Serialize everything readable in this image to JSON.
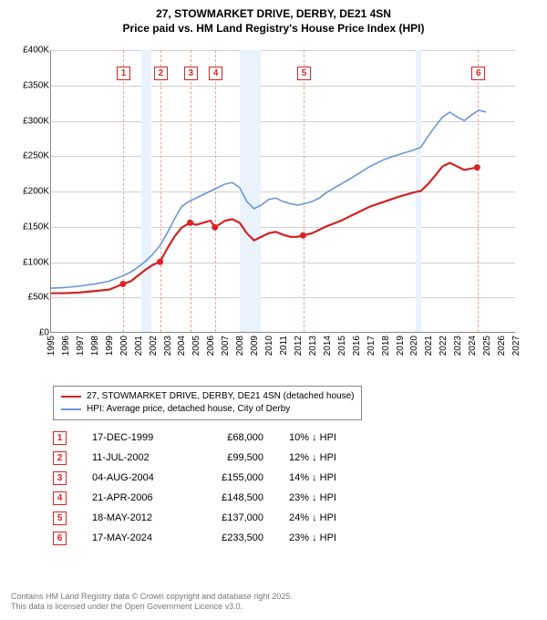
{
  "title_line1": "27, STOWMARKET DRIVE, DERBY, DE21 4SN",
  "title_line2": "Price paid vs. HM Land Registry's House Price Index (HPI)",
  "chart": {
    "type": "line",
    "x_start_year": 1995,
    "x_end_year": 2027,
    "xlabels": [
      "1995",
      "1996",
      "1997",
      "1998",
      "1999",
      "2000",
      "2001",
      "2002",
      "2003",
      "2004",
      "2005",
      "2006",
      "2007",
      "2008",
      "2009",
      "2010",
      "2011",
      "2012",
      "2013",
      "2014",
      "2015",
      "2016",
      "2017",
      "2018",
      "2019",
      "2020",
      "2021",
      "2022",
      "2023",
      "2024",
      "2025",
      "2026",
      "2027"
    ],
    "ylim_min": 0,
    "ylim_max": 400000,
    "ytick_step": 50000,
    "ylabels": [
      "£0",
      "£50K",
      "£100K",
      "£150K",
      "£200K",
      "£250K",
      "£300K",
      "£350K",
      "£400K"
    ],
    "grid_color": "#d0d0d0",
    "band_color": "#eaf2fc",
    "dash_color": "#e9a0a0",
    "bg": "#ffffff",
    "recession_bands": [
      {
        "start": 2001.2,
        "end": 2001.9
      },
      {
        "start": 2008.0,
        "end": 2009.4
      },
      {
        "start": 2020.1,
        "end": 2020.5
      }
    ],
    "series": [
      {
        "name": "price_paid",
        "label": "27, STOWMARKET DRIVE, DERBY, DE21 4SN (detached house)",
        "color": "#d22222",
        "width": 2.2,
        "points": [
          [
            1995.0,
            55000
          ],
          [
            1996.0,
            55000
          ],
          [
            1997.0,
            56000
          ],
          [
            1998.0,
            58000
          ],
          [
            1999.0,
            60000
          ],
          [
            1999.96,
            68000
          ],
          [
            2000.5,
            72000
          ],
          [
            2001.0,
            80000
          ],
          [
            2001.5,
            88000
          ],
          [
            2002.0,
            95000
          ],
          [
            2002.52,
            99500
          ],
          [
            2003.0,
            118000
          ],
          [
            2003.5,
            135000
          ],
          [
            2004.0,
            148000
          ],
          [
            2004.59,
            155000
          ],
          [
            2005.0,
            152000
          ],
          [
            2005.5,
            155000
          ],
          [
            2006.0,
            158000
          ],
          [
            2006.3,
            148500
          ],
          [
            2007.0,
            158000
          ],
          [
            2007.5,
            160000
          ],
          [
            2008.0,
            155000
          ],
          [
            2008.5,
            140000
          ],
          [
            2009.0,
            130000
          ],
          [
            2009.5,
            135000
          ],
          [
            2010.0,
            140000
          ],
          [
            2010.5,
            142000
          ],
          [
            2011.0,
            138000
          ],
          [
            2011.5,
            135000
          ],
          [
            2012.0,
            135000
          ],
          [
            2012.38,
            137000
          ],
          [
            2013.0,
            140000
          ],
          [
            2013.5,
            145000
          ],
          [
            2014.0,
            150000
          ],
          [
            2015.0,
            158000
          ],
          [
            2016.0,
            168000
          ],
          [
            2017.0,
            178000
          ],
          [
            2018.0,
            185000
          ],
          [
            2019.0,
            192000
          ],
          [
            2020.0,
            198000
          ],
          [
            2020.5,
            200000
          ],
          [
            2021.0,
            210000
          ],
          [
            2021.5,
            222000
          ],
          [
            2022.0,
            235000
          ],
          [
            2022.5,
            240000
          ],
          [
            2023.0,
            235000
          ],
          [
            2023.5,
            230000
          ],
          [
            2024.0,
            232000
          ],
          [
            2024.38,
            233500
          ]
        ]
      },
      {
        "name": "hpi",
        "label": "HPI: Average price, detached house, City of Derby",
        "color": "#6b95d4",
        "width": 1.6,
        "points": [
          [
            1995.0,
            62000
          ],
          [
            1996.0,
            63000
          ],
          [
            1997.0,
            65000
          ],
          [
            1998.0,
            68000
          ],
          [
            1999.0,
            72000
          ],
          [
            2000.0,
            80000
          ],
          [
            2000.5,
            85000
          ],
          [
            2001.0,
            92000
          ],
          [
            2001.5,
            100000
          ],
          [
            2002.0,
            110000
          ],
          [
            2002.5,
            122000
          ],
          [
            2003.0,
            140000
          ],
          [
            2003.5,
            160000
          ],
          [
            2004.0,
            178000
          ],
          [
            2004.5,
            185000
          ],
          [
            2005.0,
            190000
          ],
          [
            2005.5,
            195000
          ],
          [
            2006.0,
            200000
          ],
          [
            2006.5,
            205000
          ],
          [
            2007.0,
            210000
          ],
          [
            2007.5,
            212000
          ],
          [
            2008.0,
            205000
          ],
          [
            2008.5,
            185000
          ],
          [
            2009.0,
            175000
          ],
          [
            2009.5,
            180000
          ],
          [
            2010.0,
            188000
          ],
          [
            2010.5,
            190000
          ],
          [
            2011.0,
            185000
          ],
          [
            2011.5,
            182000
          ],
          [
            2012.0,
            180000
          ],
          [
            2012.5,
            182000
          ],
          [
            2013.0,
            185000
          ],
          [
            2013.5,
            190000
          ],
          [
            2014.0,
            198000
          ],
          [
            2015.0,
            210000
          ],
          [
            2016.0,
            222000
          ],
          [
            2017.0,
            235000
          ],
          [
            2018.0,
            245000
          ],
          [
            2019.0,
            252000
          ],
          [
            2020.0,
            258000
          ],
          [
            2020.5,
            262000
          ],
          [
            2021.0,
            278000
          ],
          [
            2021.5,
            292000
          ],
          [
            2022.0,
            305000
          ],
          [
            2022.5,
            312000
          ],
          [
            2023.0,
            305000
          ],
          [
            2023.5,
            300000
          ],
          [
            2024.0,
            308000
          ],
          [
            2024.5,
            315000
          ],
          [
            2025.0,
            312000
          ]
        ]
      }
    ],
    "sale_markers": [
      {
        "n": "1",
        "year": 1999.96,
        "price": 68000
      },
      {
        "n": "2",
        "year": 2002.52,
        "price": 99500
      },
      {
        "n": "3",
        "year": 2004.59,
        "price": 155000
      },
      {
        "n": "4",
        "year": 2006.3,
        "price": 148500
      },
      {
        "n": "5",
        "year": 2012.38,
        "price": 137000
      },
      {
        "n": "6",
        "year": 2024.38,
        "price": 233500
      }
    ],
    "label_fontsize": 10
  },
  "sales_table": [
    {
      "n": "1",
      "date": "17-DEC-1999",
      "price": "£68,000",
      "diff": "10% ↓ HPI"
    },
    {
      "n": "2",
      "date": "11-JUL-2002",
      "price": "£99,500",
      "diff": "12% ↓ HPI"
    },
    {
      "n": "3",
      "date": "04-AUG-2004",
      "price": "£155,000",
      "diff": "14% ↓ HPI"
    },
    {
      "n": "4",
      "date": "21-APR-2006",
      "price": "£148,500",
      "diff": "23% ↓ HPI"
    },
    {
      "n": "5",
      "date": "18-MAY-2012",
      "price": "£137,000",
      "diff": "24% ↓ HPI"
    },
    {
      "n": "6",
      "date": "17-MAY-2024",
      "price": "£233,500",
      "diff": "23% ↓ HPI"
    }
  ],
  "footer_line1": "Contains HM Land Registry data © Crown copyright and database right 2025.",
  "footer_line2": "This data is licensed under the Open Government Licence v3.0."
}
